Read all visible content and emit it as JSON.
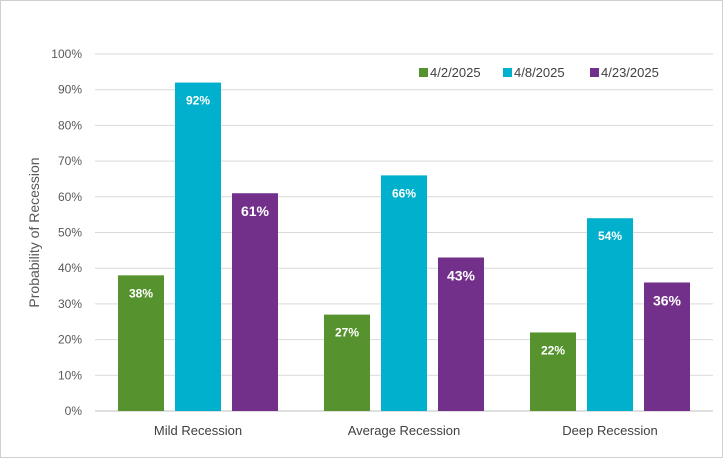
{
  "chart_data": {
    "type": "bar",
    "title": "",
    "xlabel": "",
    "ylabel": "Probability of Recession",
    "ylim": [
      0,
      100
    ],
    "yticks": [
      "0%",
      "10%",
      "20%",
      "30%",
      "40%",
      "50%",
      "60%",
      "70%",
      "80%",
      "90%",
      "100%"
    ],
    "categories": [
      "Mild Recession",
      "Average Recession",
      "Deep Recession"
    ],
    "legend_position": "top-right",
    "grid": true,
    "series": [
      {
        "name": "4/2/2025",
        "color": "#56922e",
        "values": [
          38,
          27,
          22
        ],
        "labels": [
          "38%",
          "27%",
          "22%"
        ]
      },
      {
        "name": "4/8/2025",
        "color": "#00b0cc",
        "values": [
          92,
          66,
          54
        ],
        "labels": [
          "92%",
          "66%",
          "54%"
        ]
      },
      {
        "name": "4/23/2025",
        "color": "#73308b",
        "values": [
          61,
          43,
          36
        ],
        "labels": [
          "61%",
          "43%",
          "36%"
        ]
      }
    ]
  }
}
